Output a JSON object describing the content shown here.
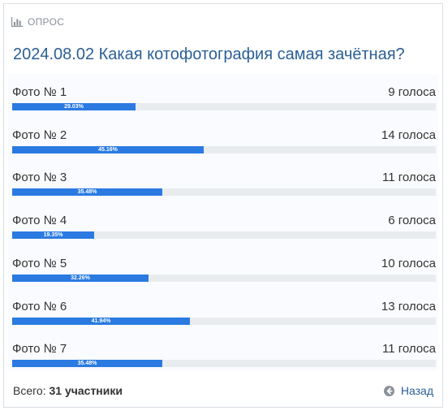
{
  "poll": {
    "label": "ОПРОС",
    "title": "2024.08.02 Какая котофотография самая зачётная?",
    "options": [
      {
        "name": "Фото № 1",
        "votes": "9 голоса",
        "percent": "29.03%",
        "fraction": 0.2903
      },
      {
        "name": "Фото № 2",
        "votes": "14 голоса",
        "percent": "45.16%",
        "fraction": 0.4516
      },
      {
        "name": "Фото № 3",
        "votes": "11 голоса",
        "percent": "35.48%",
        "fraction": 0.3548
      },
      {
        "name": "Фото № 4",
        "votes": "6 голоса",
        "percent": "19.35%",
        "fraction": 0.1935
      },
      {
        "name": "Фото № 5",
        "votes": "10 голоса",
        "percent": "32.26%",
        "fraction": 0.3226
      },
      {
        "name": "Фото № 6",
        "votes": "13 голоса",
        "percent": "41.94%",
        "fraction": 0.4194
      },
      {
        "name": "Фото № 7",
        "votes": "11 голоса",
        "percent": "35.48%",
        "fraction": 0.3548
      }
    ],
    "total_label": "Всего:",
    "total_value": "31 участники",
    "back_label": "Назад"
  },
  "colors": {
    "accent": "#2a7ae2",
    "title": "#2b5f95",
    "track": "#e9ecef"
  },
  "icons": {
    "header": "bar-chart-icon",
    "back": "arrow-left-circle-icon"
  }
}
